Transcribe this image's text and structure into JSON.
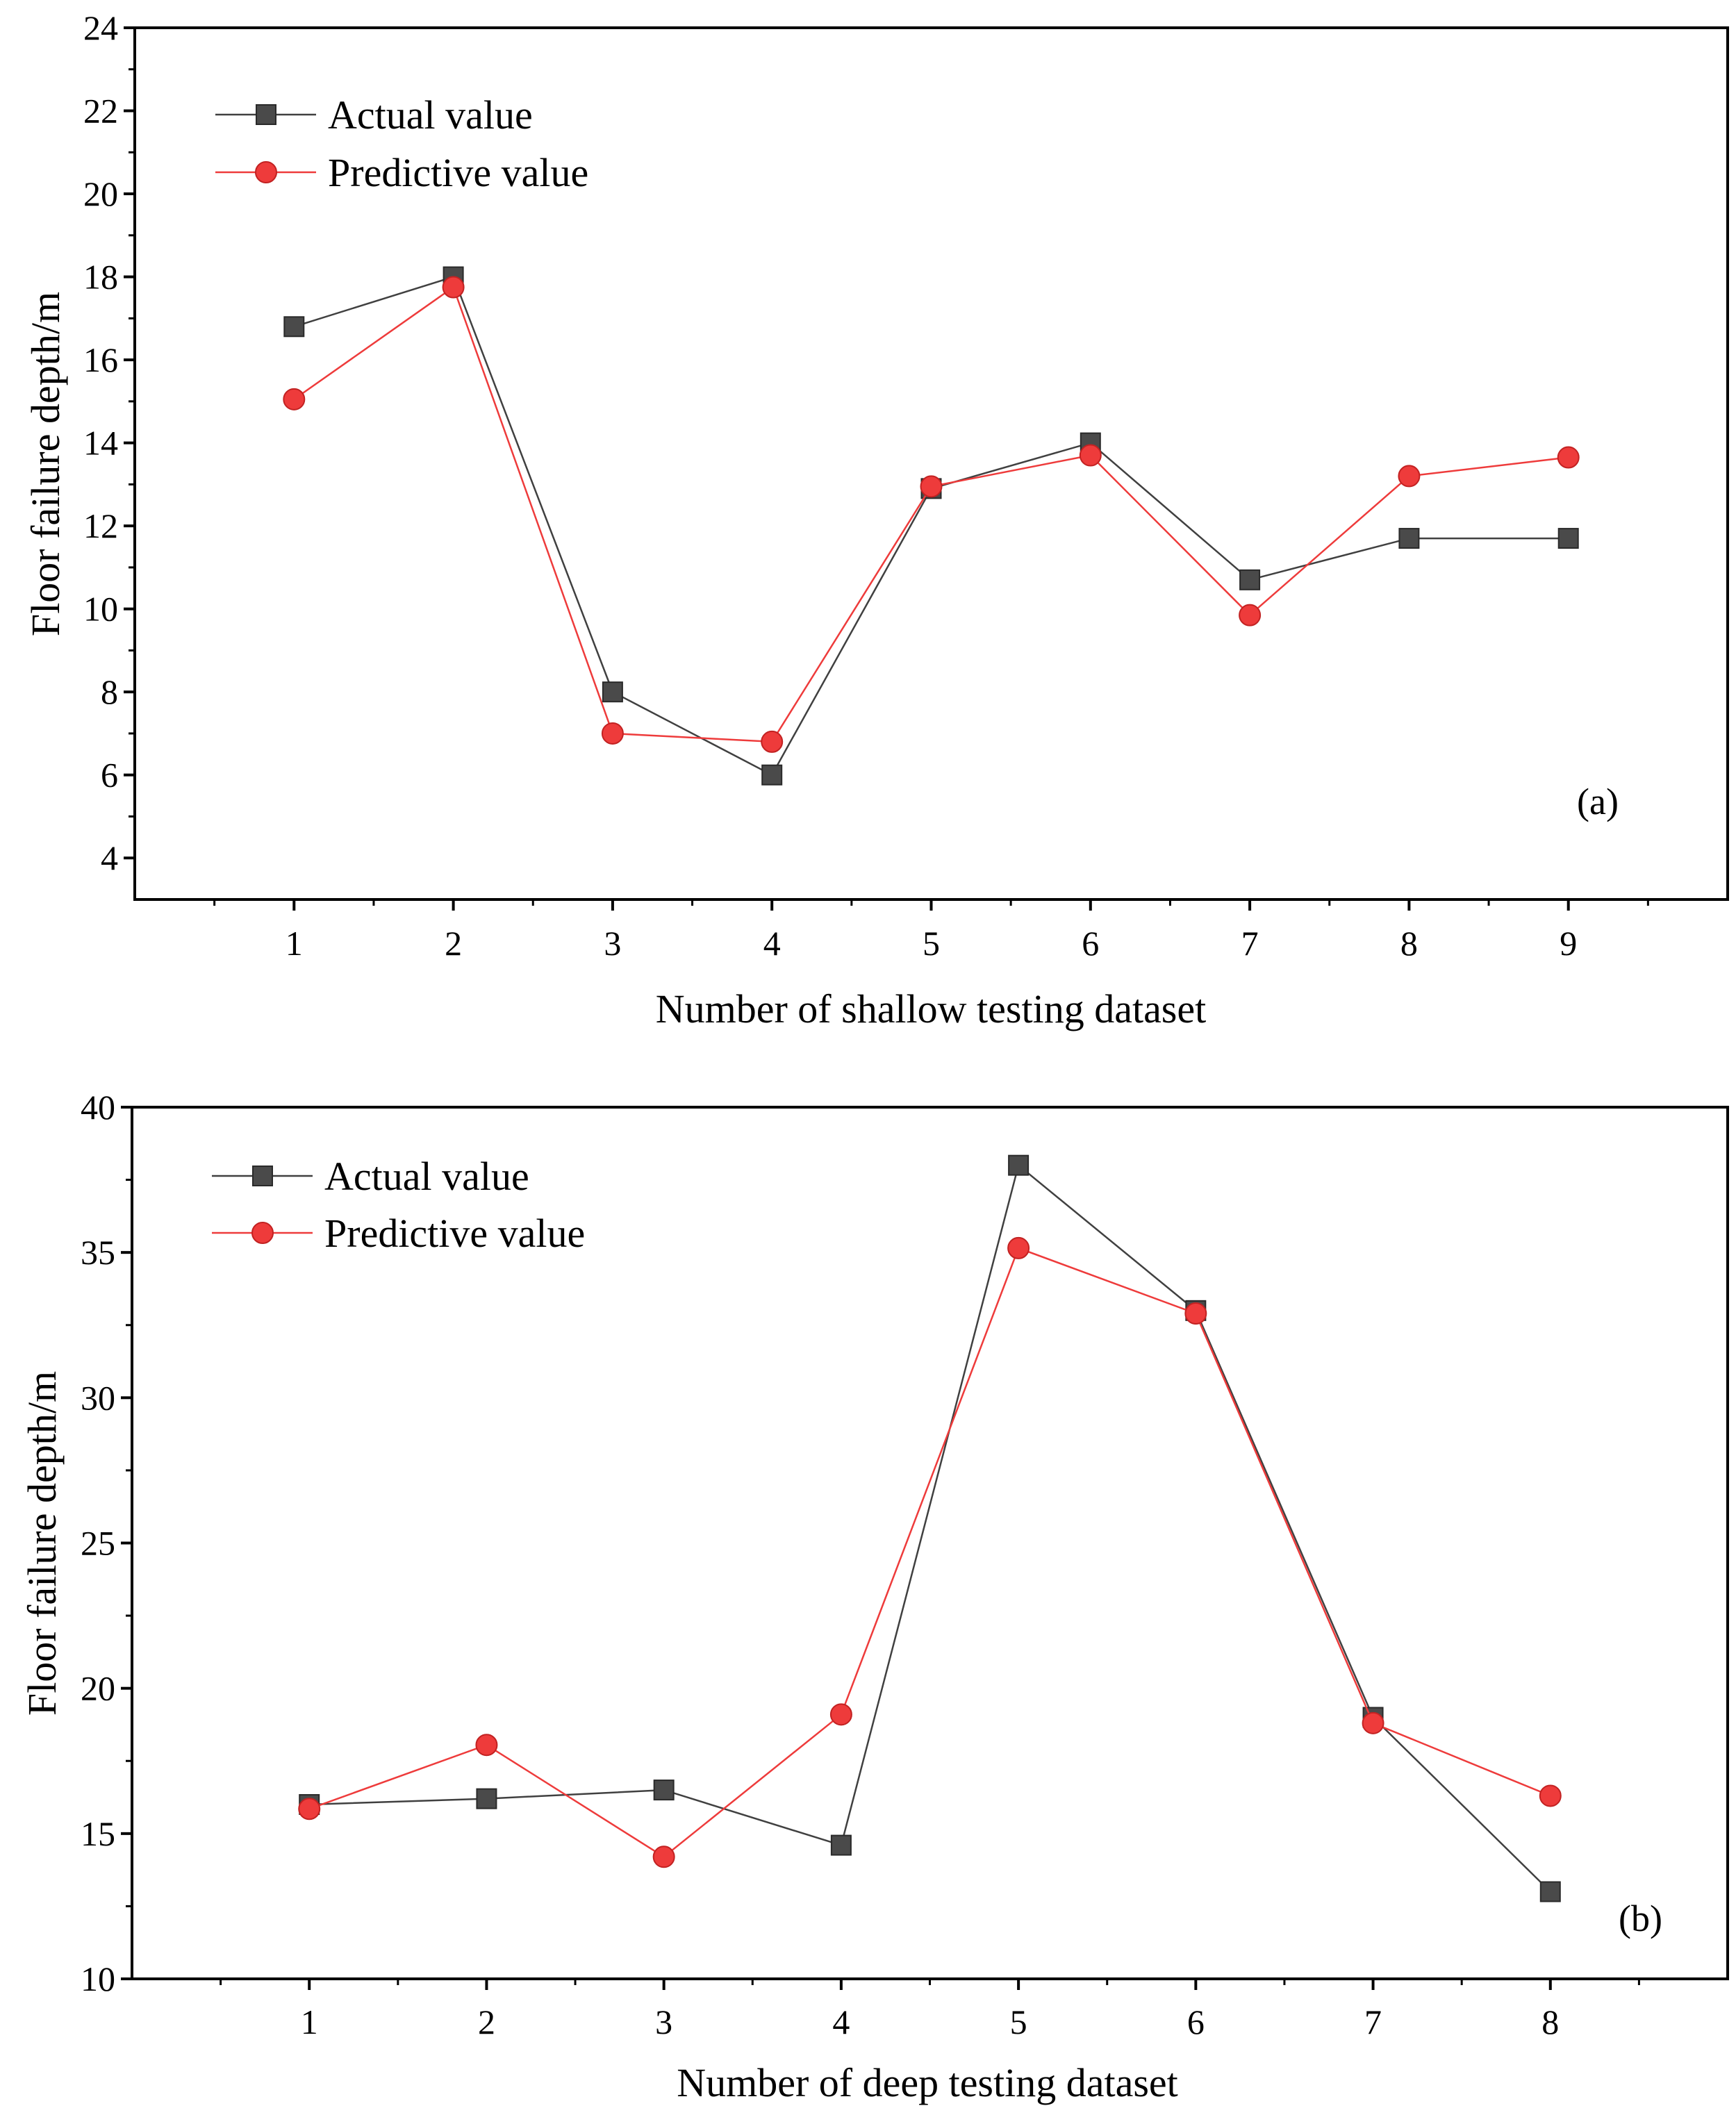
{
  "chart_data": [
    {
      "type": "line",
      "panel_label": "(a)",
      "xlabel": "Number of shallow testing dataset",
      "ylabel": "Floor failure depth/m",
      "x": [
        1,
        2,
        3,
        4,
        5,
        6,
        7,
        8,
        9
      ],
      "xlim": [
        0,
        10
      ],
      "ylim": [
        3,
        24
      ],
      "yticks": [
        4,
        6,
        8,
        10,
        12,
        14,
        16,
        18,
        20,
        22,
        24
      ],
      "legend_position": "top-left",
      "series": [
        {
          "name": "Actual value",
          "marker": "square",
          "color": "#404040",
          "values": [
            16.8,
            18.0,
            8.0,
            6.0,
            12.9,
            14.0,
            10.7,
            11.7,
            11.7
          ]
        },
        {
          "name": "Predictive value",
          "marker": "circle",
          "color": "#ee3b3b",
          "values": [
            15.05,
            17.75,
            7.0,
            6.8,
            12.95,
            13.7,
            9.85,
            13.2,
            13.65
          ]
        }
      ]
    },
    {
      "type": "line",
      "panel_label": "(b)",
      "xlabel": "Number of deep testing dataset",
      "ylabel": "Floor failure depth/m",
      "x": [
        1,
        2,
        3,
        4,
        5,
        6,
        7,
        8
      ],
      "xlim": [
        0,
        9
      ],
      "ylim": [
        10,
        40
      ],
      "yticks": [
        10,
        15,
        20,
        25,
        30,
        35,
        40
      ],
      "legend_position": "top-left",
      "series": [
        {
          "name": "Actual value",
          "marker": "square",
          "color": "#404040",
          "values": [
            16.0,
            16.2,
            16.5,
            14.6,
            38.0,
            33.0,
            19.0,
            13.0
          ]
        },
        {
          "name": "Predictive value",
          "marker": "circle",
          "color": "#ee3b3b",
          "values": [
            15.85,
            18.05,
            14.2,
            19.1,
            35.15,
            32.9,
            18.8,
            16.3
          ]
        }
      ]
    }
  ]
}
